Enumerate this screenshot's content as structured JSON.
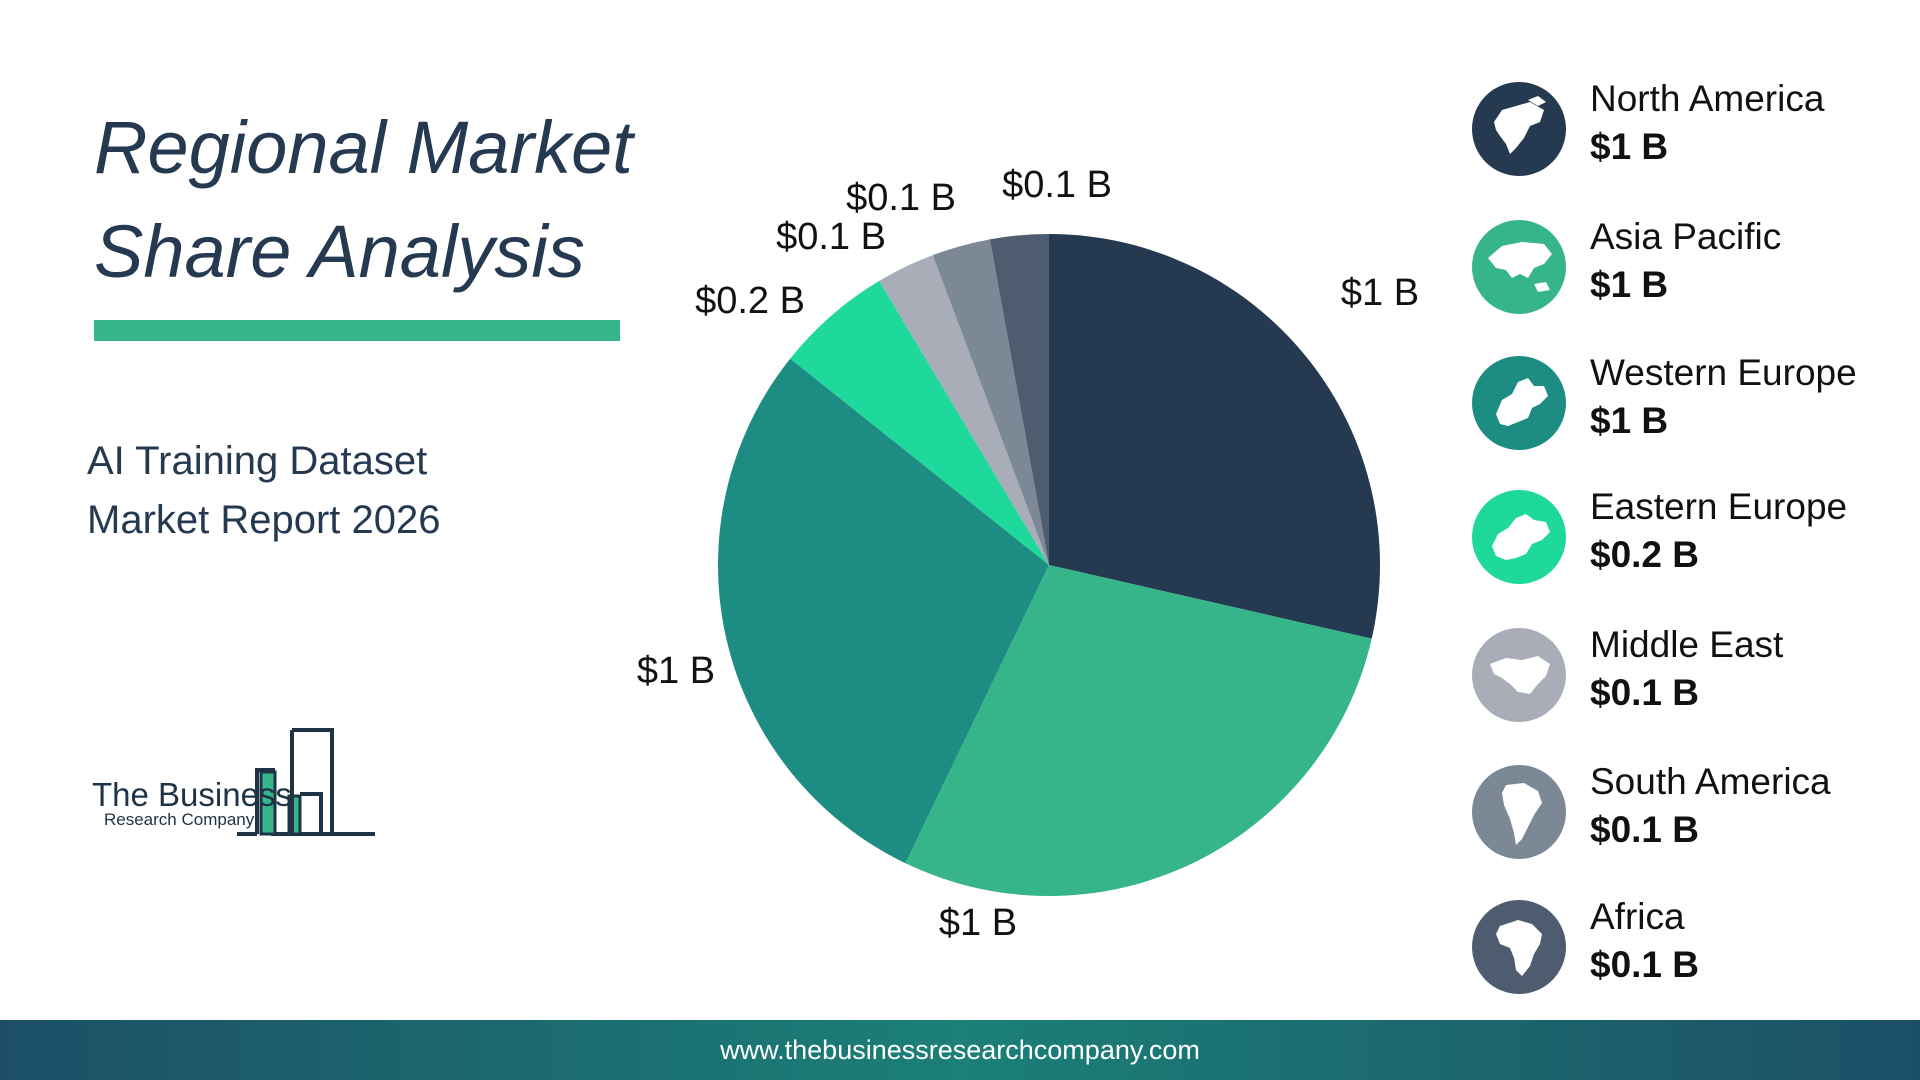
{
  "title_lines": [
    "Regional Market",
    "Share Analysis"
  ],
  "subtitle_lines": [
    "AI Training Dataset",
    "Market Report 2026"
  ],
  "logo": {
    "name": "The Business",
    "sub": "Research Company"
  },
  "footer": {
    "url": "www.thebusinessresearchcompany.com"
  },
  "colors": {
    "title": "#253a50",
    "accent": "#35b589",
    "footer": "#1b8078"
  },
  "legend": [
    {
      "name": "North America",
      "value": "$1 B",
      "color": "#253a50",
      "icon": "north-america-map-icon"
    },
    {
      "name": "Asia Pacific",
      "value": "$1 B",
      "color": "#35b589",
      "icon": "asia-pacific-map-icon"
    },
    {
      "name": "Western Europe",
      "value": "$1 B",
      "color": "#1d8d83",
      "icon": "western-europe-map-icon"
    },
    {
      "name": "Eastern Europe",
      "value": "$0.2 B",
      "color": "#1fd89c",
      "icon": "eastern-europe-map-icon"
    },
    {
      "name": "Middle East",
      "value": "$0.1 B",
      "color": "#a8adb7",
      "icon": "middle-east-map-icon"
    },
    {
      "name": "South America",
      "value": "$0.1 B",
      "color": "#7c8896",
      "icon": "south-america-map-icon"
    },
    {
      "name": "Africa",
      "value": "$0.1 B",
      "color": "#4d5d6f",
      "icon": "africa-map-icon"
    }
  ],
  "chart_data": {
    "type": "pie",
    "title": "Regional Market Share Analysis",
    "categories": [
      "North America",
      "Asia Pacific",
      "Western Europe",
      "Eastern Europe",
      "Middle East",
      "South America",
      "Africa"
    ],
    "values": [
      1,
      1,
      1,
      0.2,
      0.1,
      0.1,
      0.1
    ],
    "labels": [
      "$1 B",
      "$1 B",
      "$1 B",
      "$0.2 B",
      "$0.1 B",
      "$0.1 B",
      "$0.1 B"
    ],
    "colors": [
      "#253a50",
      "#35b589",
      "#1d8d83",
      "#1fd89c",
      "#a8adb7",
      "#7c8896",
      "#4d5d6f"
    ],
    "start": "12 o'clock",
    "direction": "clockwise",
    "legend_position": "right"
  }
}
